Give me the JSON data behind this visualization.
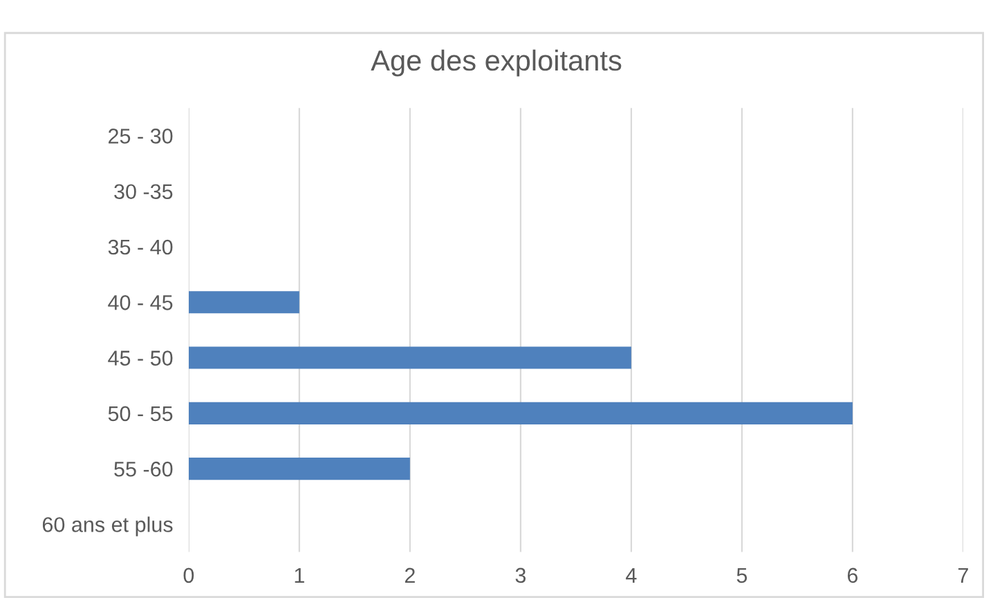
{
  "chart_data": {
    "type": "bar",
    "orientation": "horizontal",
    "title": "Age des exploitants",
    "categories": [
      "25 - 30",
      "30 -35",
      "35 - 40",
      "40 - 45",
      "45 - 50",
      "50 - 55",
      "55 -60",
      "60 ans et plus"
    ],
    "series": [
      {
        "color": "#4f81bd",
        "values": [
          0,
          0,
          0,
          1,
          4,
          6,
          2,
          0
        ]
      }
    ],
    "xlim": [
      0,
      7
    ],
    "xticks": [
      0,
      1,
      2,
      3,
      4,
      5,
      6,
      7
    ],
    "grid": "x"
  }
}
